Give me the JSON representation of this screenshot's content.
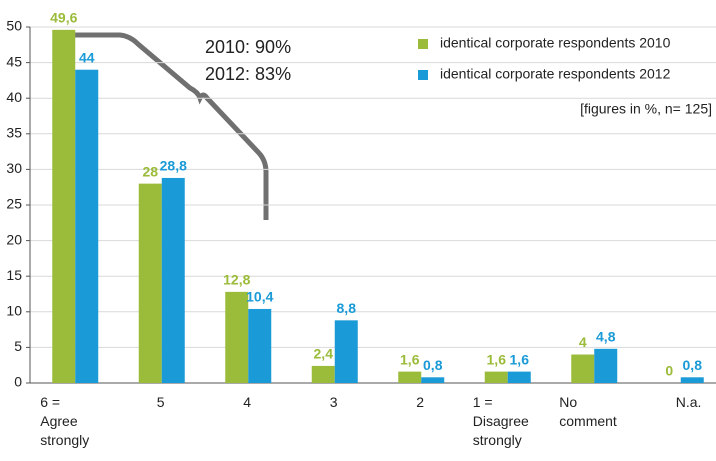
{
  "chart_data": {
    "type": "bar",
    "categories": [
      "6 =\nAgree\nstrongly",
      "5",
      "4",
      "3",
      "2",
      "1 =\nDisagree\nstrongly",
      "No\ncomment",
      "N.a."
    ],
    "series": [
      {
        "name": "identical corporate respondents 2010",
        "color": "#9bbb3a",
        "values": [
          49.6,
          28,
          12.8,
          2.4,
          1.6,
          1.6,
          4,
          0
        ],
        "value_labels": [
          "49,6",
          "28",
          "12,8",
          "2,4",
          "1,6",
          "1,6",
          "4",
          "0"
        ]
      },
      {
        "name": "identical corporate respondents 2012",
        "color": "#1a9ad6",
        "values": [
          44,
          28.8,
          10.4,
          8.8,
          0.8,
          1.6,
          4.8,
          0.8
        ],
        "value_labels": [
          "44",
          "28,8",
          "10,4",
          "8,8",
          "0,8",
          "1,6",
          "4,8",
          "0,8"
        ]
      }
    ],
    "annotations": [
      "2010: 90%",
      "2012: 83%"
    ],
    "note": "[figures in %, n= 125]",
    "ylim": [
      0,
      50
    ],
    "yticks": [
      0,
      5,
      10,
      15,
      20,
      25,
      30,
      35,
      40,
      45,
      50
    ],
    "grid": true
  }
}
